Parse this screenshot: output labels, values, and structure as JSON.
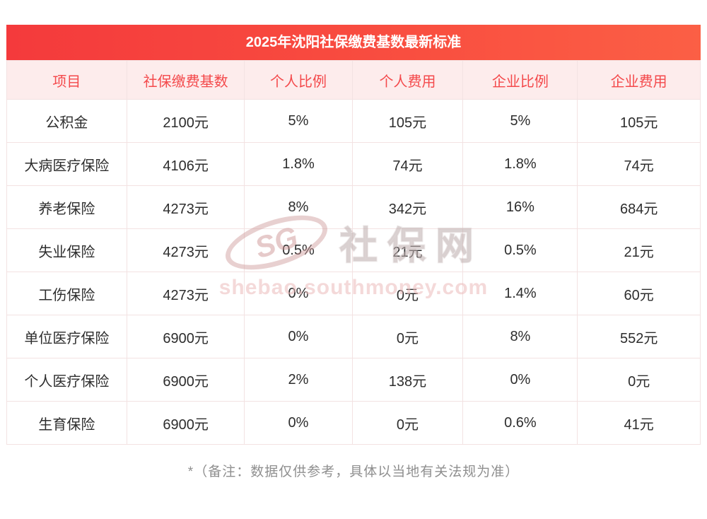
{
  "title": "2025年沈阳社保缴费基数最新标准",
  "chart_data": {
    "type": "table",
    "title": "2025年沈阳社保缴费基数最新标准",
    "columns": [
      "项目",
      "社保缴费基数",
      "个人比例",
      "个人费用",
      "企业比例",
      "企业费用"
    ],
    "rows": [
      [
        "公积金",
        "2100元",
        "5%",
        "105元",
        "5%",
        "105元"
      ],
      [
        "大病医疗保险",
        "4106元",
        "1.8%",
        "74元",
        "1.8%",
        "74元"
      ],
      [
        "养老保险",
        "4273元",
        "8%",
        "342元",
        "16%",
        "684元"
      ],
      [
        "失业保险",
        "4273元",
        "0.5%",
        "21元",
        "0.5%",
        "21元"
      ],
      [
        "工伤保险",
        "4273元",
        "0%",
        "0元",
        "1.4%",
        "60元"
      ],
      [
        "单位医疗保险",
        "6900元",
        "0%",
        "0元",
        "8%",
        "552元"
      ],
      [
        "个人医疗保险",
        "6900元",
        "2%",
        "138元",
        "0%",
        "0元"
      ],
      [
        "生育保险",
        "6900元",
        "0%",
        "0元",
        "0.6%",
        "41元"
      ]
    ]
  },
  "note": "*（备注：数据仅供参考，具体以当地有关法规为准）",
  "watermark": {
    "logo_text": "SG",
    "brand_text": "社保网",
    "url": "shebao.southmoney.com"
  },
  "colors": {
    "title_gradient_start": "#f43a3c",
    "title_gradient_end": "#fb5f45",
    "header_bg": "#fdecec",
    "header_text": "#f4494b",
    "border": "#f3e2e2",
    "cell_text": "#2d2d2d",
    "note_text": "#8f8f8f"
  }
}
